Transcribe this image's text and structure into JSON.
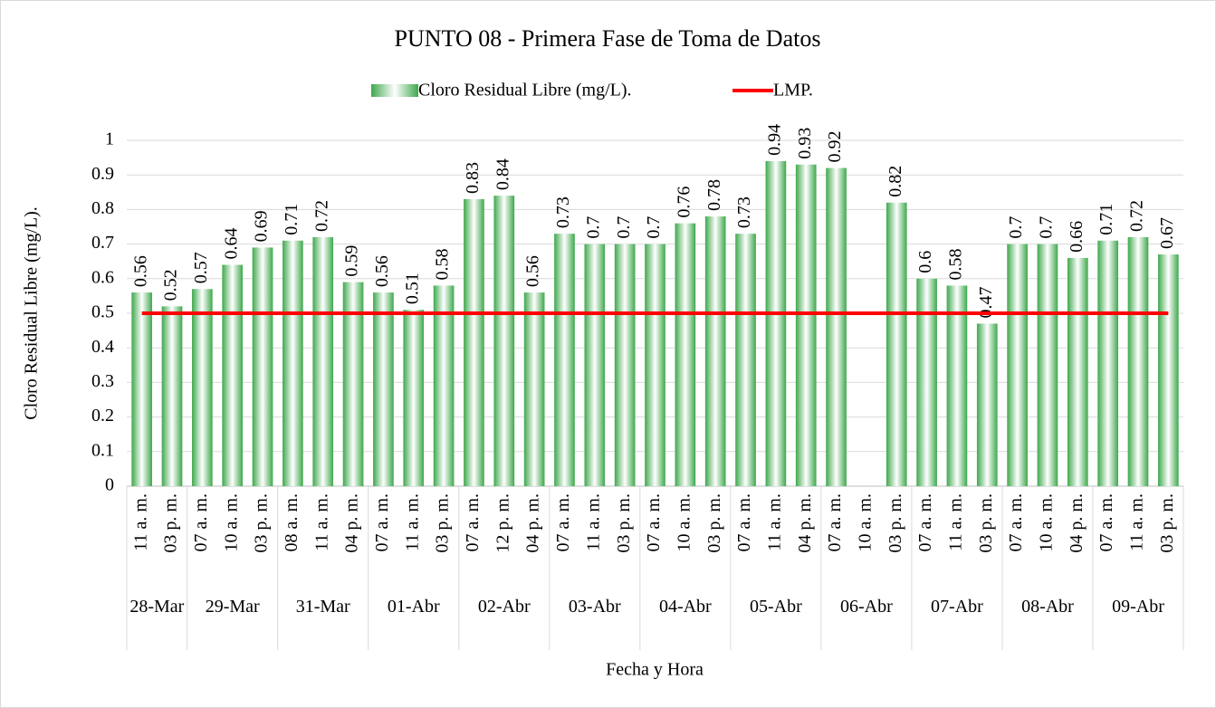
{
  "chart_data": {
    "type": "bar",
    "title": "PUNTO 08 - Primera Fase de Toma de Datos",
    "x_label": "Fecha y Hora",
    "y_label": "Cloro Residual Libre (mg/L).",
    "categories": [
      "11 a. m.",
      "03 p. m.",
      "07 a. m.",
      "10 a. m.",
      "03 p. m.",
      "08 a. m.",
      "11 a. m.",
      "04 p. m.",
      "07 a. m.",
      "11 a. m.",
      "03 p. m.",
      "07 a. m.",
      "12 p. m.",
      "04 p. m.",
      "07 a. m.",
      "11 a. m.",
      "03 p. m.",
      "07 a. m.",
      "10 a. m.",
      "03 p. m.",
      "07 a. m.",
      "11 a. m.",
      "04 p. m.",
      "07 a. m.",
      "10 a. m.",
      "03 p. m.",
      "07 a. m.",
      "11 a. m.",
      "03 p. m.",
      "07 a. m.",
      "10 a. m.",
      "04 p. m.",
      "07 a. m.",
      "11 a. m.",
      "03 p. m."
    ],
    "groups": [
      {
        "label": "28-Mar",
        "span": 2
      },
      {
        "label": "29-Mar",
        "span": 3
      },
      {
        "label": "31-Mar",
        "span": 3
      },
      {
        "label": "01-Abr",
        "span": 3
      },
      {
        "label": "02-Abr",
        "span": 3
      },
      {
        "label": "03-Abr",
        "span": 3
      },
      {
        "label": "04-Abr",
        "span": 3
      },
      {
        "label": "05-Abr",
        "span": 3
      },
      {
        "label": "06-Abr",
        "span": 3
      },
      {
        "label": "07-Abr",
        "span": 3
      },
      {
        "label": "08-Abr",
        "span": 3
      },
      {
        "label": "09-Abr",
        "span": 3
      }
    ],
    "series": [
      {
        "name": "Cloro Residual Libre (mg/L).",
        "type": "bar",
        "color": "#3ea84c",
        "values": [
          0.56,
          0.52,
          0.57,
          0.64,
          0.69,
          0.71,
          0.72,
          0.59,
          0.56,
          0.51,
          0.58,
          0.83,
          0.84,
          0.56,
          0.73,
          0.7,
          0.7,
          0.7,
          0.76,
          0.78,
          0.73,
          0.94,
          0.93,
          0.92,
          null,
          0.82,
          0.6,
          0.58,
          0.47,
          0.7,
          0.7,
          0.66,
          0.71,
          0.72,
          0.67
        ]
      },
      {
        "name": "LMP.",
        "type": "line",
        "color": "#ff0000",
        "values": [
          0.5,
          0.5,
          0.5,
          0.5,
          0.5,
          0.5,
          0.5,
          0.5,
          0.5,
          0.5,
          0.5,
          0.5,
          0.5,
          0.5,
          0.5,
          0.5,
          0.5,
          0.5,
          0.5,
          0.5,
          0.5,
          0.5,
          0.5,
          0.5,
          0.5,
          0.5,
          0.5,
          0.5,
          0.5,
          0.5,
          0.5,
          0.5,
          0.5,
          0.5,
          0.5
        ]
      }
    ],
    "ylim": [
      0,
      1
    ],
    "yticks": [
      0,
      0.1,
      0.2,
      0.3,
      0.4,
      0.5,
      0.6,
      0.7,
      0.8,
      0.9,
      1
    ],
    "grid": true,
    "legend": "top"
  }
}
